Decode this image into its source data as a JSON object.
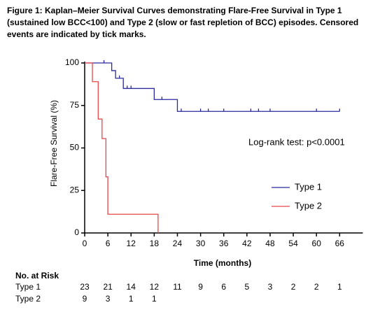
{
  "chart_data": {
    "type": "step",
    "title": "Figure 1: Kaplan–Meier Survival Curves demonstrating Flare-Free Survival in Type 1 (sustained low BCC<100) and Type 2 (slow or fast repletion of BCC) episodes. Censored events are indicated by tick marks.",
    "x_label": "Time (months)",
    "y_label": "Flare-Free Survival (%)",
    "annotation": "Log-rank test: p<0.0001",
    "xlim": [
      0,
      72
    ],
    "xticks": [
      0,
      6,
      12,
      18,
      24,
      30,
      36,
      42,
      48,
      54,
      60,
      66
    ],
    "ylim": [
      0,
      100
    ],
    "yticks": [
      0,
      25,
      50,
      75,
      100
    ],
    "series": [
      {
        "name": "Type 1",
        "color": "#2a2a9c",
        "x": [
          0,
          7,
          7,
          8,
          8,
          10,
          10,
          18,
          18,
          24,
          24,
          66
        ],
        "values": [
          100,
          100,
          95.5,
          95.5,
          91,
          91,
          85,
          85,
          78.5,
          78.5,
          71.5,
          71.5
        ],
        "censored": {
          "x": [
            5,
            9,
            11,
            12,
            20,
            25,
            30,
            32,
            36,
            43,
            45,
            48,
            60,
            66
          ],
          "values": [
            100,
            91,
            85,
            85,
            78.5,
            71.5,
            71.5,
            71.5,
            71.5,
            71.5,
            71.5,
            71.5,
            71.5,
            71.5
          ]
        }
      },
      {
        "name": "Type 2",
        "color": "#e8474a",
        "x": [
          0,
          2,
          2,
          3.5,
          3.5,
          4.5,
          4.5,
          5.5,
          5.5,
          6,
          6,
          19,
          19
        ],
        "values": [
          100,
          100,
          89,
          89,
          67,
          67,
          55.5,
          55.5,
          33,
          33,
          11,
          11,
          0
        ]
      }
    ],
    "risk_table": {
      "title": "No. at Risk",
      "rows": [
        {
          "name": "Type 1",
          "counts": [
            23,
            21,
            14,
            12,
            11,
            9,
            6,
            5,
            3,
            2,
            2,
            1
          ]
        },
        {
          "name": "Type 2",
          "counts": [
            9,
            3,
            1,
            1
          ]
        }
      ]
    }
  }
}
